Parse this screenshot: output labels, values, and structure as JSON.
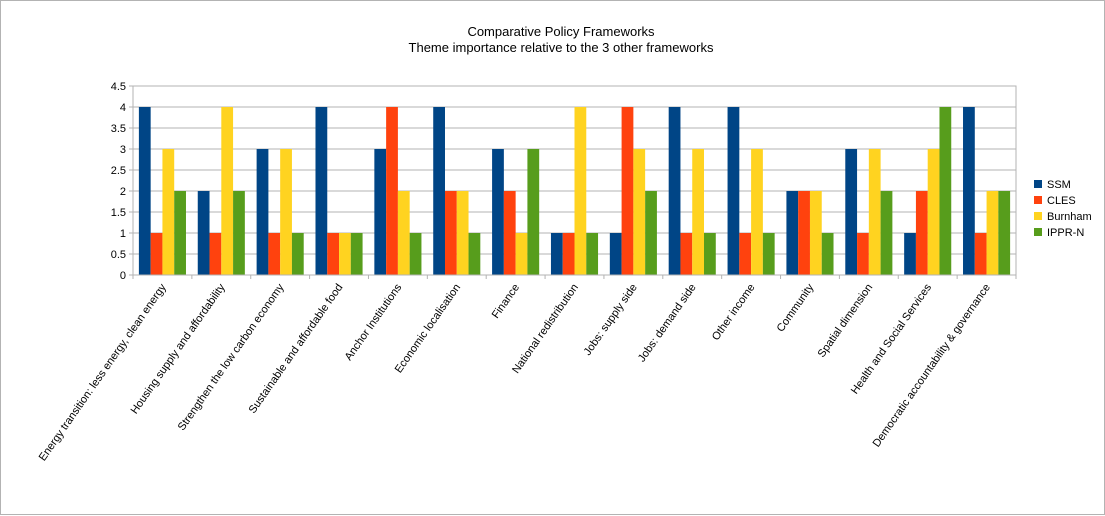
{
  "chart_data": {
    "type": "bar",
    "title": "Comparative Policy Frameworks",
    "subtitle": "Theme importance relative to the 3 other frameworks",
    "xlabel": "",
    "ylabel": "",
    "ylim": [
      0,
      4.5
    ],
    "yticks": [
      "0",
      "0.5",
      "1",
      "1.5",
      "2",
      "2.5",
      "3",
      "3.5",
      "4",
      "4.5"
    ],
    "grid": true,
    "legend_position": "right",
    "categories": [
      "Energy transition: less energy, clean energy",
      "Housing supply and affordability",
      "Strengthen the low carbon economy",
      "Sustainable and affordable food",
      "Anchor Institutions",
      "Economic localisation",
      "Finance",
      "National redistribution",
      "Jobs: supply side",
      "Jobs: demand side",
      "Other income",
      "Community",
      "Spatial dimension",
      "Health and Social Services",
      "Democratic accountability & governance"
    ],
    "series": [
      {
        "name": "SSM",
        "color": "#004586",
        "values": [
          4,
          2,
          3,
          4,
          3,
          4,
          3,
          1,
          1,
          4,
          4,
          2,
          3,
          1,
          4
        ]
      },
      {
        "name": "CLES",
        "color": "#ff420e",
        "values": [
          1,
          1,
          1,
          1,
          4,
          2,
          2,
          1,
          4,
          1,
          1,
          2,
          1,
          2,
          1
        ]
      },
      {
        "name": "Burnham",
        "color": "#ffd320",
        "values": [
          3,
          4,
          3,
          1,
          2,
          2,
          1,
          4,
          3,
          3,
          3,
          2,
          3,
          3,
          2
        ]
      },
      {
        "name": "IPPR-N",
        "color": "#579d1c",
        "values": [
          2,
          2,
          1,
          1,
          1,
          1,
          3,
          1,
          2,
          1,
          1,
          1,
          2,
          4,
          2
        ]
      }
    ]
  }
}
